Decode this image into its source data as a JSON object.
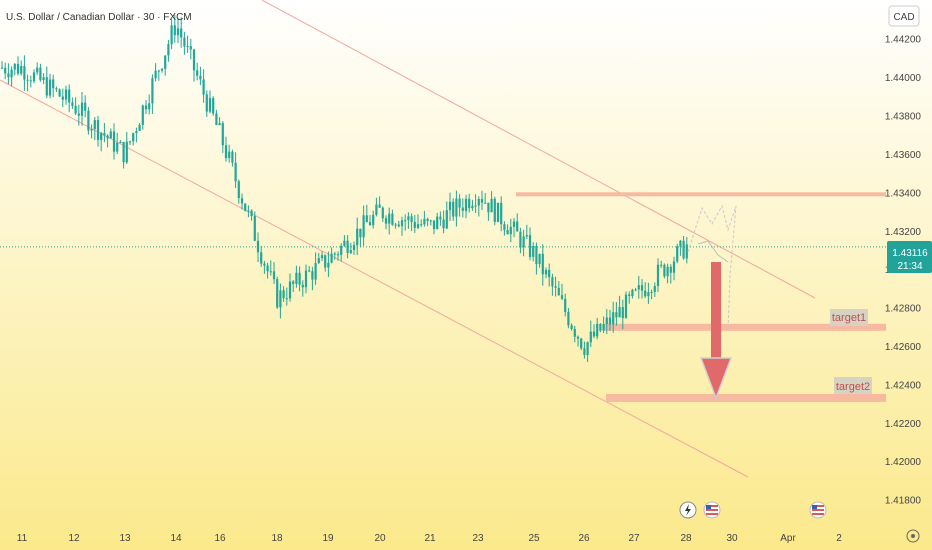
{
  "header": {
    "symbol_title": "U.S. Dollar / Canadian Dollar · 30 · FXCM",
    "currency": "CAD"
  },
  "price_badge": {
    "price": "1.43116",
    "countdown": "21:34"
  },
  "annotations": {
    "target1": "target1",
    "target2": "target2"
  },
  "colors": {
    "bg_top": "#ffffff",
    "bg_bottom": "#fbe98b",
    "candle": "#22a59a",
    "channel": "#f2a7a0",
    "zone": "#f7b9a0",
    "arrow": "#e06a6a",
    "badge": "#21a39a"
  },
  "chart_data": {
    "type": "candlestick",
    "title": "U.S. Dollar / Canadian Dollar · 30 · FXCM",
    "y_ticks": [
      "1.44200",
      "1.44000",
      "1.43800",
      "1.43600",
      "1.43400",
      "1.43200",
      "1.43000",
      "1.42800",
      "1.42600",
      "1.42400",
      "1.42200",
      "1.42000",
      "1.41800"
    ],
    "x_ticks": [
      "11",
      "12",
      "13",
      "14",
      "16",
      "18",
      "19",
      "20",
      "21",
      "23",
      "25",
      "26",
      "27",
      "28",
      "30",
      "Apr",
      "2"
    ],
    "ylim": [
      1.4172,
      1.4436
    ],
    "current_price": 1.43116,
    "resistance_level": 1.4339,
    "target1_level": 1.427,
    "target2_level": 1.4233,
    "path": [
      {
        "day": "11",
        "price": 1.4405
      },
      {
        "day": "12",
        "price": 1.4385
      },
      {
        "day": "13",
        "price": 1.436
      },
      {
        "day": "14",
        "price": 1.4428
      },
      {
        "day": "16",
        "price": 1.437
      },
      {
        "day": "18",
        "price": 1.4285
      },
      {
        "day": "19",
        "price": 1.4305
      },
      {
        "day": "20",
        "price": 1.433
      },
      {
        "day": "21",
        "price": 1.4322
      },
      {
        "day": "23",
        "price": 1.434
      },
      {
        "day": "25",
        "price": 1.4308
      },
      {
        "day": "26",
        "price": 1.426
      },
      {
        "day": "27",
        "price": 1.4285
      },
      {
        "day": "28",
        "price": 1.4312
      }
    ]
  }
}
